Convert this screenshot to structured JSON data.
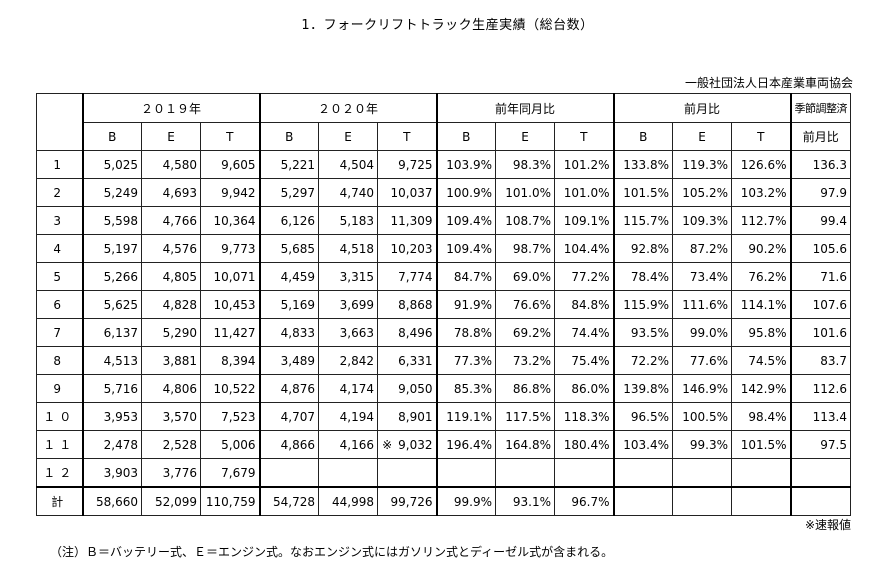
{
  "title": "1．フォークリフトトラック生産実績（総台数）",
  "organization": "一般社団法人日本産業車両協会",
  "headers": {
    "year2019": "２０１９年",
    "year2020": "２０２０年",
    "yoy": "前年同月比",
    "mom": "前月比",
    "seasonal_top": "季節調整済",
    "seasonal_bottom": "前月比",
    "b": "B",
    "e": "E",
    "t": "T"
  },
  "rows": [
    {
      "month": "1",
      "c": [
        "5,025",
        "4,580",
        "9,605",
        "5,221",
        "4,504",
        "9,725",
        "103.9%",
        "98.3%",
        "101.2%",
        "133.8%",
        "119.3%",
        "126.6%",
        "136.3"
      ]
    },
    {
      "month": "2",
      "c": [
        "5,249",
        "4,693",
        "9,942",
        "5,297",
        "4,740",
        "10,037",
        "100.9%",
        "101.0%",
        "101.0%",
        "101.5%",
        "105.2%",
        "103.2%",
        "97.9"
      ]
    },
    {
      "month": "3",
      "c": [
        "5,598",
        "4,766",
        "10,364",
        "6,126",
        "5,183",
        "11,309",
        "109.4%",
        "108.7%",
        "109.1%",
        "115.7%",
        "109.3%",
        "112.7%",
        "99.4"
      ]
    },
    {
      "month": "4",
      "c": [
        "5,197",
        "4,576",
        "9,773",
        "5,685",
        "4,518",
        "10,203",
        "109.4%",
        "98.7%",
        "104.4%",
        "92.8%",
        "87.2%",
        "90.2%",
        "105.6"
      ]
    },
    {
      "month": "5",
      "c": [
        "5,266",
        "4,805",
        "10,071",
        "4,459",
        "3,315",
        "7,774",
        "84.7%",
        "69.0%",
        "77.2%",
        "78.4%",
        "73.4%",
        "76.2%",
        "71.6"
      ]
    },
    {
      "month": "6",
      "c": [
        "5,625",
        "4,828",
        "10,453",
        "5,169",
        "3,699",
        "8,868",
        "91.9%",
        "76.6%",
        "84.8%",
        "115.9%",
        "111.6%",
        "114.1%",
        "107.6"
      ]
    },
    {
      "month": "7",
      "c": [
        "6,137",
        "5,290",
        "11,427",
        "4,833",
        "3,663",
        "8,496",
        "78.8%",
        "69.2%",
        "74.4%",
        "93.5%",
        "99.0%",
        "95.8%",
        "101.6"
      ]
    },
    {
      "month": "8",
      "c": [
        "4,513",
        "3,881",
        "8,394",
        "3,489",
        "2,842",
        "6,331",
        "77.3%",
        "73.2%",
        "75.4%",
        "72.2%",
        "77.6%",
        "74.5%",
        "83.7"
      ]
    },
    {
      "month": "9",
      "c": [
        "5,716",
        "4,806",
        "10,522",
        "4,876",
        "4,174",
        "9,050",
        "85.3%",
        "86.8%",
        "86.0%",
        "139.8%",
        "146.9%",
        "142.9%",
        "112.6"
      ]
    },
    {
      "month": "１０",
      "c": [
        "3,953",
        "3,570",
        "7,523",
        "4,707",
        "4,194",
        "8,901",
        "119.1%",
        "117.5%",
        "118.3%",
        "96.5%",
        "100.5%",
        "98.4%",
        "113.4"
      ]
    },
    {
      "month": "１１",
      "c": [
        "2,478",
        "2,528",
        "5,006",
        "4,866",
        "4,166",
        "9,032",
        "196.4%",
        "164.8%",
        "180.4%",
        "103.4%",
        "99.3%",
        "101.5%",
        "97.5"
      ]
    },
    {
      "month": "１２",
      "c": [
        "3,903",
        "3,776",
        "7,679",
        "",
        "",
        "",
        "",
        "",
        "",
        "",
        "",
        "",
        ""
      ]
    }
  ],
  "preliminary_mark": "※",
  "total": {
    "label": "計",
    "c": [
      "58,660",
      "52,099",
      "110,759",
      "54,728",
      "44,998",
      "99,726",
      "99.9%",
      "93.1%",
      "96.7%",
      "",
      "",
      "",
      ""
    ]
  },
  "note_preliminary": "※速報値",
  "footnote": "（注）Ｂ＝バッテリー式、Ｅ＝エンジン式。なおエンジン式にはガソリン式とディーゼル式が含まれる。"
}
